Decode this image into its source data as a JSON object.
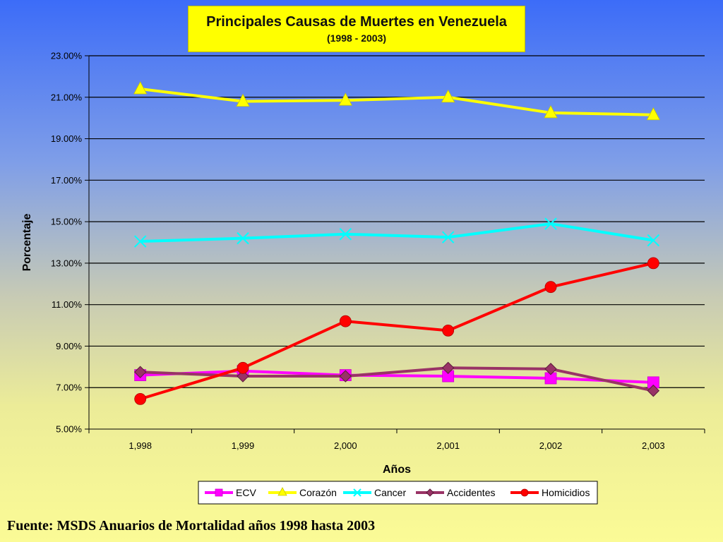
{
  "chart_data": {
    "type": "line",
    "title": "Principales Causas de Muertes en Venezuela",
    "subtitle": "(1998 - 2003)",
    "xlabel": "Años",
    "ylabel": "Porcentaje",
    "categories": [
      "1,998",
      "1,999",
      "2,000",
      "2,001",
      "2,002",
      "2,003"
    ],
    "ylim": [
      5,
      23
    ],
    "yticks": [
      "5.00%",
      "7.00%",
      "9.00%",
      "11.00%",
      "13.00%",
      "15.00%",
      "17.00%",
      "19.00%",
      "21.00%",
      "23.00%"
    ],
    "ytick_values": [
      5,
      7,
      9,
      11,
      13,
      15,
      17,
      19,
      21,
      23
    ],
    "grid": true,
    "legend_position": "bottom",
    "series": [
      {
        "name": "ECV",
        "color": "#ff00ff",
        "marker": "square",
        "values": [
          7.6,
          7.8,
          7.6,
          7.55,
          7.45,
          7.25
        ]
      },
      {
        "name": "Corazón",
        "color": "#ffff00",
        "marker": "triangle",
        "values": [
          21.4,
          20.8,
          20.85,
          21.0,
          20.25,
          20.15
        ]
      },
      {
        "name": "Cancer",
        "color": "#00ffff",
        "marker": "cross",
        "values": [
          14.05,
          14.2,
          14.4,
          14.25,
          14.9,
          14.1
        ]
      },
      {
        "name": "Accidentes",
        "color": "#993366",
        "marker": "diamond",
        "values": [
          7.75,
          7.55,
          7.55,
          7.95,
          7.9,
          6.85
        ]
      },
      {
        "name": "Homicidios",
        "color": "#ff0000",
        "marker": "circle",
        "values": [
          6.45,
          7.95,
          10.2,
          9.75,
          11.85,
          13.0
        ]
      }
    ]
  },
  "footer": "Fuente: MSDS Anuarios de Mortalidad años 1998 hasta 2003"
}
